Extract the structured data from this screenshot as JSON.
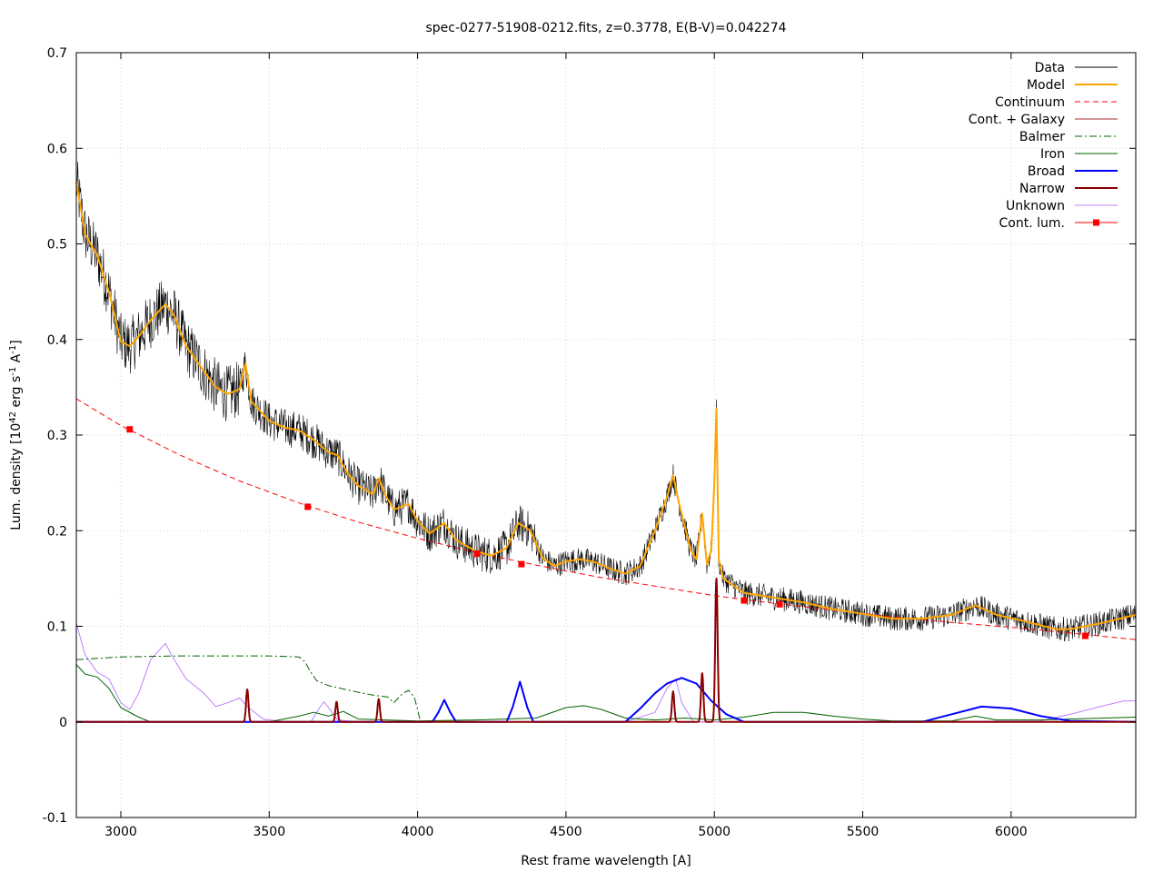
{
  "chart_data": {
    "type": "line",
    "title": "spec-0277-51908-0212.fits, z=0.3778, E(B-V)=0.042274",
    "xlabel": "Rest frame wavelength [A]",
    "ylabel": {
      "prefix": "Lum. density [10",
      "exp1": "42",
      "mid": " erg s",
      "exp2": "-1",
      "mid2": " A",
      "exp3": "-1",
      "suffix": "]"
    },
    "xlim": [
      2850,
      6420
    ],
    "ylim": [
      -0.1,
      0.7
    ],
    "xticks": [
      3000,
      3500,
      4000,
      4500,
      5000,
      5500,
      6000
    ],
    "xtick_labels": [
      "3000",
      "3500",
      "4000",
      "4500",
      "5000",
      "5500",
      "6000"
    ],
    "yticks": [
      -0.1,
      0,
      0.1,
      0.2,
      0.3,
      0.4,
      0.5,
      0.6,
      0.7
    ],
    "ytick_labels": [
      "-0.1",
      "0",
      "0.1",
      "0.2",
      "0.3",
      "0.4",
      "0.5",
      "0.6",
      "0.7"
    ],
    "grid": true,
    "legend_position": "top-right",
    "legend": [
      {
        "name": "Data",
        "color": "#000000",
        "style": "solid"
      },
      {
        "name": "Model",
        "color": "#ffa500",
        "style": "solid-thick"
      },
      {
        "name": "Continuum",
        "color": "#ff0000",
        "style": "dashed"
      },
      {
        "name": "Cont. + Galaxy",
        "color": "#a52a2a",
        "style": "solid"
      },
      {
        "name": "Balmer",
        "color": "#006400",
        "style": "dashdot"
      },
      {
        "name": "Iron",
        "color": "#006400",
        "style": "solid"
      },
      {
        "name": "Broad",
        "color": "#0000ff",
        "style": "solid-thick"
      },
      {
        "name": "Narrow",
        "color": "#8b0000",
        "style": "solid-thick"
      },
      {
        "name": "Unknown",
        "color": "#bf7fff",
        "style": "solid"
      },
      {
        "name": "Cont. lum.",
        "color": "#ff0000",
        "style": "line-square"
      }
    ],
    "series": [
      {
        "name": "Model",
        "x": [
          2850,
          2880,
          2920,
          2960,
          3000,
          3030,
          3060,
          3100,
          3150,
          3180,
          3220,
          3280,
          3320,
          3360,
          3400,
          3420,
          3440,
          3500,
          3550,
          3600,
          3650,
          3700,
          3730,
          3760,
          3800,
          3850,
          3870,
          3890,
          3920,
          3970,
          4000,
          4040,
          4090,
          4130,
          4200,
          4250,
          4300,
          4340,
          4380,
          4420,
          4460,
          4500,
          4550,
          4600,
          4650,
          4700,
          4750,
          4800,
          4840,
          4861,
          4880,
          4920,
          4940,
          4959,
          4975,
          4990,
          5000,
          5007,
          5015,
          5030,
          5100,
          5200,
          5300,
          5400,
          5500,
          5600,
          5700,
          5800,
          5880,
          5950,
          6050,
          6150,
          6200,
          6300,
          6420
        ],
        "values": [
          0.565,
          0.51,
          0.488,
          0.45,
          0.398,
          0.393,
          0.403,
          0.42,
          0.437,
          0.425,
          0.393,
          0.367,
          0.35,
          0.343,
          0.348,
          0.375,
          0.335,
          0.315,
          0.308,
          0.305,
          0.295,
          0.282,
          0.279,
          0.262,
          0.247,
          0.238,
          0.255,
          0.238,
          0.222,
          0.228,
          0.21,
          0.197,
          0.208,
          0.19,
          0.178,
          0.174,
          0.182,
          0.208,
          0.2,
          0.172,
          0.163,
          0.168,
          0.17,
          0.167,
          0.16,
          0.155,
          0.163,
          0.2,
          0.235,
          0.258,
          0.23,
          0.18,
          0.17,
          0.218,
          0.165,
          0.18,
          0.25,
          0.328,
          0.17,
          0.15,
          0.135,
          0.13,
          0.125,
          0.118,
          0.113,
          0.108,
          0.108,
          0.112,
          0.122,
          0.112,
          0.105,
          0.097,
          0.097,
          0.103,
          0.112
        ]
      },
      {
        "name": "Continuum",
        "x": [
          2850,
          3000,
          3200,
          3400,
          3600,
          3800,
          4000,
          4200,
          4400,
          4600,
          4800,
          5000,
          5200,
          5400,
          5600,
          5800,
          6000,
          6200,
          6420
        ],
        "values": [
          0.338,
          0.31,
          0.279,
          0.252,
          0.229,
          0.209,
          0.192,
          0.177,
          0.164,
          0.152,
          0.142,
          0.132,
          0.124,
          0.117,
          0.11,
          0.104,
          0.099,
          0.093,
          0.086
        ]
      },
      {
        "name": "Balmer",
        "x": [
          2850,
          3000,
          3200,
          3400,
          3500,
          3600,
          3620,
          3640,
          3660,
          3700,
          3800,
          3850,
          3900,
          3920,
          3950,
          3970,
          3990,
          4010
        ],
        "values": [
          0.065,
          0.068,
          0.069,
          0.069,
          0.069,
          0.068,
          0.063,
          0.052,
          0.043,
          0.038,
          0.031,
          0.028,
          0.026,
          0.02,
          0.03,
          0.033,
          0.025,
          0.0
        ]
      },
      {
        "name": "Iron",
        "x": [
          2850,
          2880,
          2920,
          2960,
          3000,
          3060,
          3100,
          3200,
          3500,
          3600,
          3650,
          3700,
          3750,
          3800,
          4000,
          4200,
          4400,
          4500,
          4560,
          4620,
          4700,
          4800,
          4900,
          5000,
          5100,
          5200,
          5300,
          5400,
          5500,
          5600,
          5800,
          5880,
          5950,
          6100,
          6420
        ],
        "values": [
          0.06,
          0.05,
          0.047,
          0.035,
          0.015,
          0.005,
          0.0,
          0.0,
          0.0,
          0.006,
          0.01,
          0.006,
          0.011,
          0.003,
          0.001,
          0.002,
          0.004,
          0.015,
          0.017,
          0.013,
          0.004,
          0.002,
          0.004,
          0.002,
          0.005,
          0.01,
          0.01,
          0.006,
          0.003,
          0.001,
          0.001,
          0.006,
          0.002,
          0.002,
          0.005
        ]
      },
      {
        "name": "Broad",
        "x": [
          2850,
          4050,
          4070,
          4090,
          4110,
          4130,
          4300,
          4320,
          4345,
          4370,
          4390,
          4700,
          4750,
          4800,
          4840,
          4890,
          4940,
          4990,
          5040,
          5100,
          5700,
          5800,
          5900,
          6000,
          6100,
          6200,
          6420
        ],
        "values": [
          0.0,
          0.0,
          0.01,
          0.023,
          0.01,
          0.0,
          0.0,
          0.015,
          0.042,
          0.015,
          0.0,
          0.0,
          0.014,
          0.03,
          0.04,
          0.046,
          0.04,
          0.022,
          0.008,
          0.0,
          0.0,
          0.008,
          0.016,
          0.014,
          0.006,
          0.001,
          0.0
        ]
      },
      {
        "name": "Unknown",
        "x": [
          2850,
          2880,
          2920,
          2960,
          3000,
          3030,
          3060,
          3100,
          3150,
          3180,
          3220,
          3280,
          3320,
          3360,
          3400,
          3430,
          3480,
          3550,
          3640,
          3670,
          3685,
          3700,
          3730,
          3800,
          4700,
          4800,
          4840,
          4870,
          4890,
          4930,
          5000,
          6100,
          6200,
          6300,
          6380,
          6420
        ],
        "values": [
          0.103,
          0.07,
          0.052,
          0.045,
          0.02,
          0.013,
          0.03,
          0.065,
          0.082,
          0.065,
          0.045,
          0.03,
          0.016,
          0.02,
          0.025,
          0.015,
          0.003,
          0.0,
          0.0,
          0.015,
          0.021,
          0.015,
          0.002,
          0.0,
          0.0,
          0.01,
          0.035,
          0.045,
          0.02,
          0.0,
          0.0,
          0.001,
          0.008,
          0.016,
          0.022,
          0.022
        ]
      },
      {
        "name": "Cont. lum.",
        "x": [
          3030,
          3630,
          4200,
          4350,
          5100,
          5220,
          6250
        ],
        "values": [
          0.306,
          0.225,
          0.176,
          0.165,
          0.127,
          0.123,
          0.09
        ]
      }
    ],
    "narrow_lines": [
      {
        "center": 3426,
        "height": 0.034
      },
      {
        "center": 3727,
        "height": 0.021
      },
      {
        "center": 3869,
        "height": 0.024
      },
      {
        "center": 4861,
        "height": 0.032
      },
      {
        "center": 4959,
        "height": 0.051
      },
      {
        "center": 5007,
        "height": 0.15
      }
    ],
    "noise_amplitude_note_free": 0.02
  }
}
